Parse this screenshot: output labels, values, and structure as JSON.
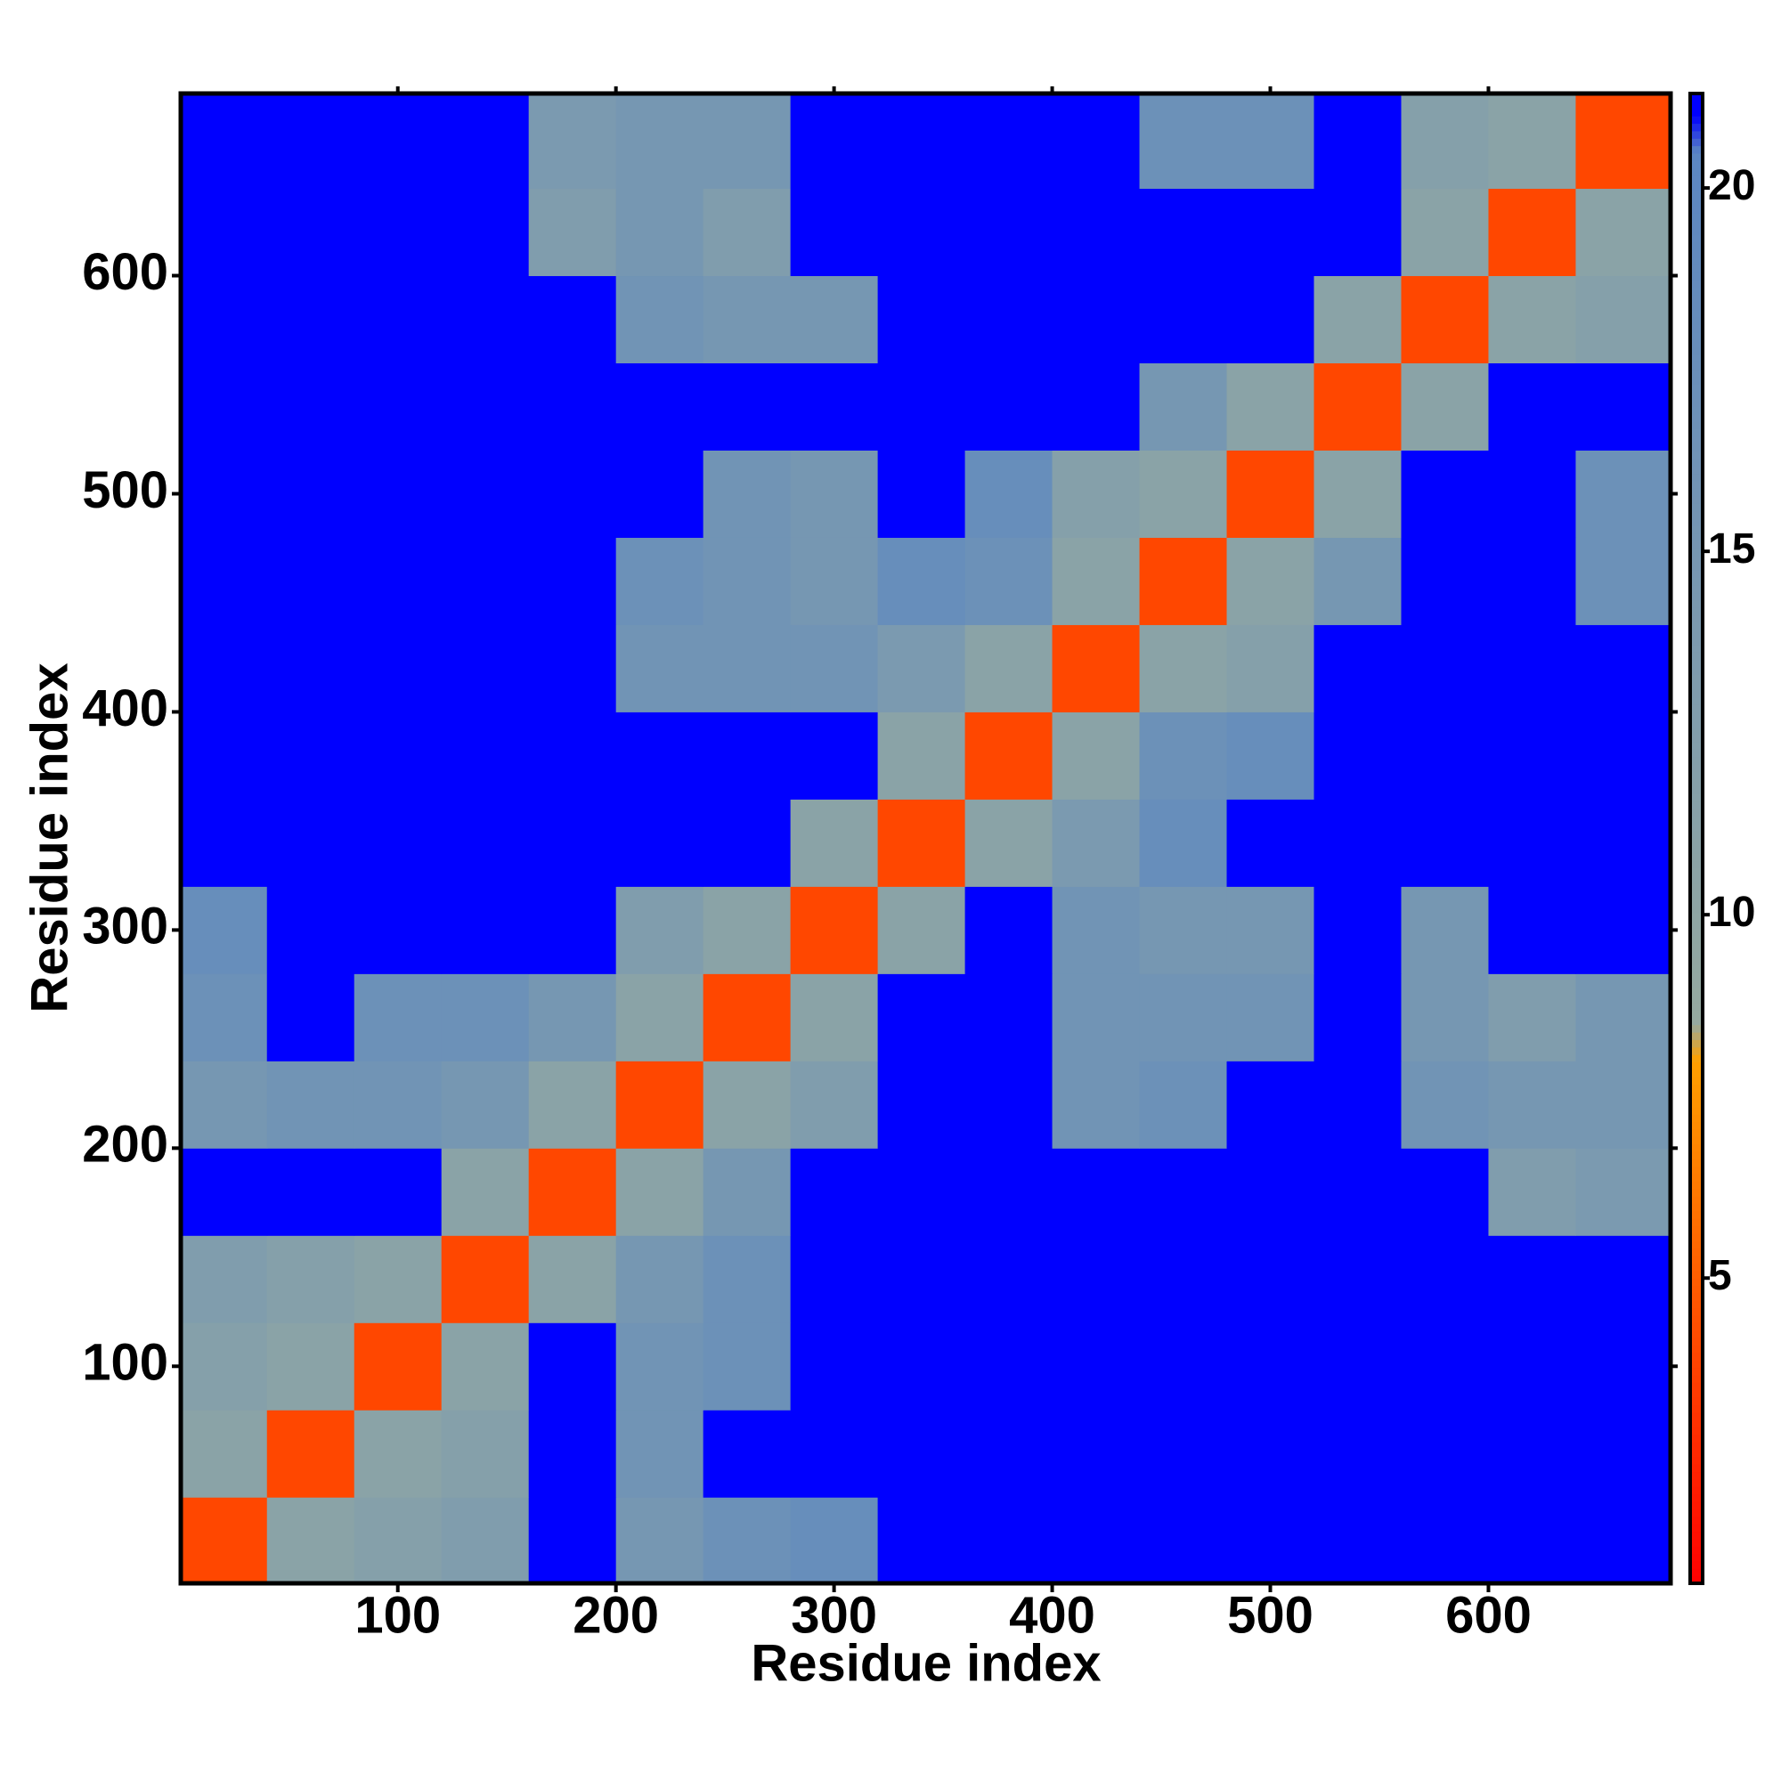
{
  "chart_data": {
    "type": "heatmap",
    "x_label": "Residue index",
    "y_label": "Residue index",
    "x_bins": [
      0,
      40,
      80,
      120,
      160,
      200,
      240,
      280,
      320,
      360,
      400,
      440,
      480,
      520,
      560,
      600,
      640,
      683
    ],
    "y_bins": [
      0,
      40,
      80,
      120,
      160,
      200,
      240,
      280,
      320,
      360,
      400,
      440,
      480,
      520,
      560,
      600,
      640,
      683
    ],
    "z": [
      [
        4,
        11,
        12,
        13,
        21,
        15,
        17,
        18,
        21,
        21,
        21,
        21,
        21,
        21,
        21,
        21,
        21
      ],
      [
        11,
        4,
        11,
        12,
        21,
        16,
        21,
        21,
        21,
        21,
        21,
        21,
        21,
        21,
        21,
        21,
        21
      ],
      [
        12,
        11,
        4,
        11,
        21,
        16,
        17,
        21,
        21,
        21,
        21,
        21,
        21,
        21,
        21,
        21,
        21
      ],
      [
        13,
        12,
        11,
        4,
        11,
        15,
        17,
        21,
        21,
        21,
        21,
        21,
        21,
        21,
        21,
        21,
        21
      ],
      [
        21,
        21,
        21,
        11,
        4,
        11,
        15,
        21,
        21,
        21,
        21,
        21,
        21,
        21,
        21,
        13,
        14
      ],
      [
        15,
        16,
        16,
        15,
        11,
        4,
        11,
        13,
        21,
        21,
        16,
        17,
        21,
        21,
        16,
        15,
        15
      ],
      [
        17,
        21,
        17,
        17,
        15,
        11,
        4,
        11,
        21,
        21,
        16,
        16,
        16,
        21,
        15,
        13,
        15
      ],
      [
        18,
        21,
        21,
        21,
        21,
        13,
        11,
        4,
        11,
        21,
        16,
        15,
        15,
        21,
        15,
        21,
        21
      ],
      [
        21,
        21,
        21,
        21,
        21,
        21,
        21,
        11,
        4,
        11,
        14,
        18,
        21,
        21,
        21,
        21,
        21
      ],
      [
        21,
        21,
        21,
        21,
        21,
        21,
        21,
        21,
        11,
        4,
        11,
        17,
        18,
        21,
        21,
        21,
        21
      ],
      [
        21,
        21,
        21,
        21,
        21,
        16,
        16,
        16,
        14,
        11,
        4,
        11,
        12,
        21,
        21,
        21,
        21
      ],
      [
        21,
        21,
        21,
        21,
        21,
        17,
        16,
        15,
        18,
        17,
        11,
        4,
        11,
        15,
        21,
        21,
        17
      ],
      [
        21,
        21,
        21,
        21,
        21,
        21,
        16,
        15,
        21,
        18,
        12,
        11,
        4,
        11,
        21,
        21,
        17
      ],
      [
        21,
        21,
        21,
        21,
        21,
        21,
        21,
        21,
        21,
        21,
        21,
        15,
        11,
        4,
        11,
        21,
        21
      ],
      [
        21,
        21,
        21,
        21,
        21,
        16,
        15,
        15,
        21,
        21,
        21,
        21,
        21,
        11,
        4,
        11,
        12
      ],
      [
        21,
        21,
        21,
        21,
        13,
        15,
        13,
        21,
        21,
        21,
        21,
        21,
        21,
        21,
        11,
        4,
        11
      ],
      [
        21,
        21,
        21,
        21,
        14,
        15,
        15,
        21,
        21,
        21,
        21,
        17,
        17,
        21,
        12,
        11,
        4
      ]
    ],
    "xlim": [
      0.5,
      683.5
    ],
    "ylim": [
      0.5,
      683.5
    ],
    "xticks": [
      100,
      200,
      300,
      400,
      500,
      600
    ],
    "yticks": [
      100,
      200,
      300,
      400,
      500,
      600
    ],
    "zlim": [
      0.8,
      21.3
    ],
    "zticks": [
      5,
      10,
      15,
      20
    ],
    "colorscale": [
      {
        "value": 0.8,
        "color": "#ff0000"
      },
      {
        "value": 8,
        "color": "#ffa000"
      },
      {
        "value": 8.5,
        "color": "#96aaa0"
      },
      {
        "value": 20.5,
        "color": "#5b86c2"
      },
      {
        "value": 21,
        "color": "#0000ff"
      }
    ]
  }
}
